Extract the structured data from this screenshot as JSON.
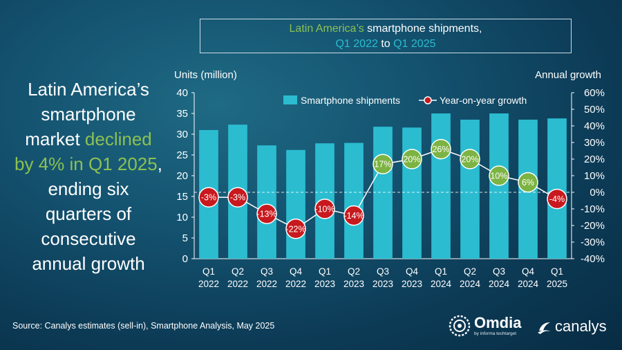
{
  "title": {
    "part1": "Latin America’s",
    "part2": " smartphone shipments,",
    "part3": "Q1 2022",
    "part4": " to ",
    "part5": "Q1 2025"
  },
  "headline": {
    "line1": "Latin America’s",
    "line2": "smartphone",
    "line3a": "market ",
    "line3b": "declined",
    "line4": "by 4% in Q1 2025",
    "line4b": ",",
    "line5": "ending six",
    "line6": "quarters of",
    "line7": "consecutive",
    "line8": "annual growth"
  },
  "source": "Source: Canalys estimates (sell-in), Smartphone Analysis, May 2025",
  "logos": {
    "omdia": "Omdia",
    "omdia_sub": "by informa techtarget",
    "canalys": "canalys"
  },
  "colors": {
    "bar": "#2bbcd0",
    "positive_marker": "#7cb342",
    "negative_marker": "#c8191e",
    "line": "#ffffff"
  },
  "chart_data": {
    "type": "bar",
    "categories": [
      [
        "Q1",
        "2022"
      ],
      [
        "Q2",
        "2022"
      ],
      [
        "Q3",
        "2022"
      ],
      [
        "Q4",
        "2022"
      ],
      [
        "Q1",
        "2023"
      ],
      [
        "Q2",
        "2023"
      ],
      [
        "Q3",
        "2023"
      ],
      [
        "Q4",
        "2023"
      ],
      [
        "Q1",
        "2024"
      ],
      [
        "Q2",
        "2024"
      ],
      [
        "Q3",
        "2024"
      ],
      [
        "Q4",
        "2024"
      ],
      [
        "Q1",
        "2025"
      ]
    ],
    "series": [
      {
        "name": "Smartphone shipments",
        "type": "bar",
        "axis": "left",
        "values": [
          31.0,
          32.3,
          27.3,
          26.2,
          27.8,
          27.9,
          31.8,
          31.6,
          35.0,
          33.5,
          35.0,
          33.5,
          33.8
        ]
      },
      {
        "name": "Year-on-year growth",
        "type": "line",
        "axis": "right",
        "values": [
          -3,
          -3,
          -13,
          -22,
          -10,
          -14,
          17,
          20,
          26,
          20,
          10,
          6,
          -4
        ],
        "labels": [
          "-3%",
          "-3%",
          "-13%",
          "-22%",
          "-10%",
          "-14%",
          "17%",
          "20%",
          "26%",
          "20%",
          "10%",
          "6%",
          "-4%"
        ]
      }
    ],
    "ylabel_left": "Units (million)",
    "ylabel_right": "Annual growth",
    "ylim_left": [
      0,
      40
    ],
    "ylim_right": [
      -40,
      60
    ],
    "yticks_left": [
      "0",
      "5",
      "10",
      "15",
      "20",
      "25",
      "30",
      "35",
      "40"
    ],
    "yticks_right": [
      "-40%",
      "-30%",
      "-20%",
      "-10%",
      "0%",
      "10%",
      "20%",
      "30%",
      "40%",
      "50%",
      "60%"
    ],
    "legend": {
      "bar_label": "Smartphone shipments",
      "line_label": "Year-on-year growth",
      "placement": "top-right"
    }
  }
}
